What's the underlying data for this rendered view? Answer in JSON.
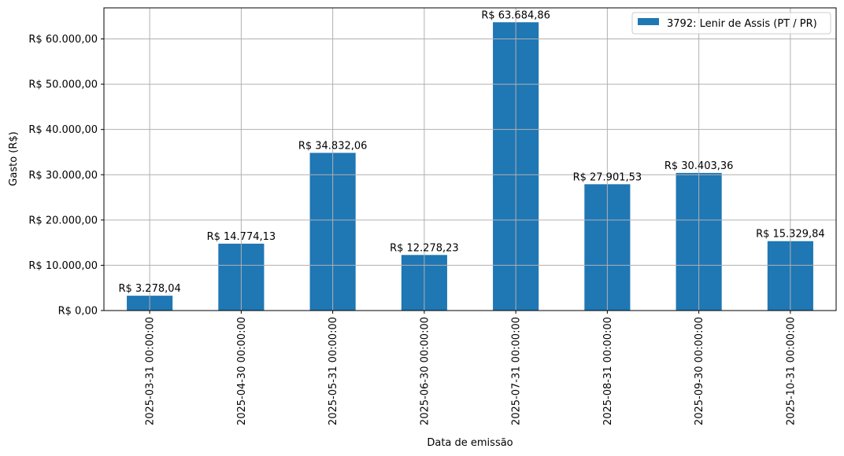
{
  "chart_data": {
    "type": "bar",
    "title": "",
    "xlabel": "Data de emissão",
    "ylabel": "Gasto (R$)",
    "categories": [
      "2025-03-31 00:00:00",
      "2025-04-30 00:00:00",
      "2025-05-31 00:00:00",
      "2025-06-30 00:00:00",
      "2025-07-31 00:00:00",
      "2025-08-31 00:00:00",
      "2025-09-30 00:00:00",
      "2025-10-31 00:00:00"
    ],
    "series": [
      {
        "name": "3792: Lenir de Assis (PT / PR)",
        "color": "#1f77b4",
        "values": [
          3278.04,
          14774.13,
          34832.06,
          12278.23,
          63684.86,
          27901.53,
          30403.36,
          15329.84
        ],
        "value_labels": [
          "R$ 3.278,04",
          "R$ 14.774,13",
          "R$ 34.832,06",
          "R$ 12.278,23",
          "R$ 63.684,86",
          "R$ 27.901,53",
          "R$ 30.403,36",
          "R$ 15.329,84"
        ]
      }
    ],
    "ylim": [
      0,
      66870
    ],
    "yticks": [
      0,
      10000,
      20000,
      30000,
      40000,
      50000,
      60000
    ],
    "ytick_labels": [
      "R$ 0,00",
      "R$ 10.000,00",
      "R$ 20.000,00",
      "R$ 30.000,00",
      "R$ 40.000,00",
      "R$ 50.000,00",
      "R$ 60.000,00"
    ],
    "grid": true,
    "legend_position": "upper right",
    "xtick_rotation": 90
  }
}
